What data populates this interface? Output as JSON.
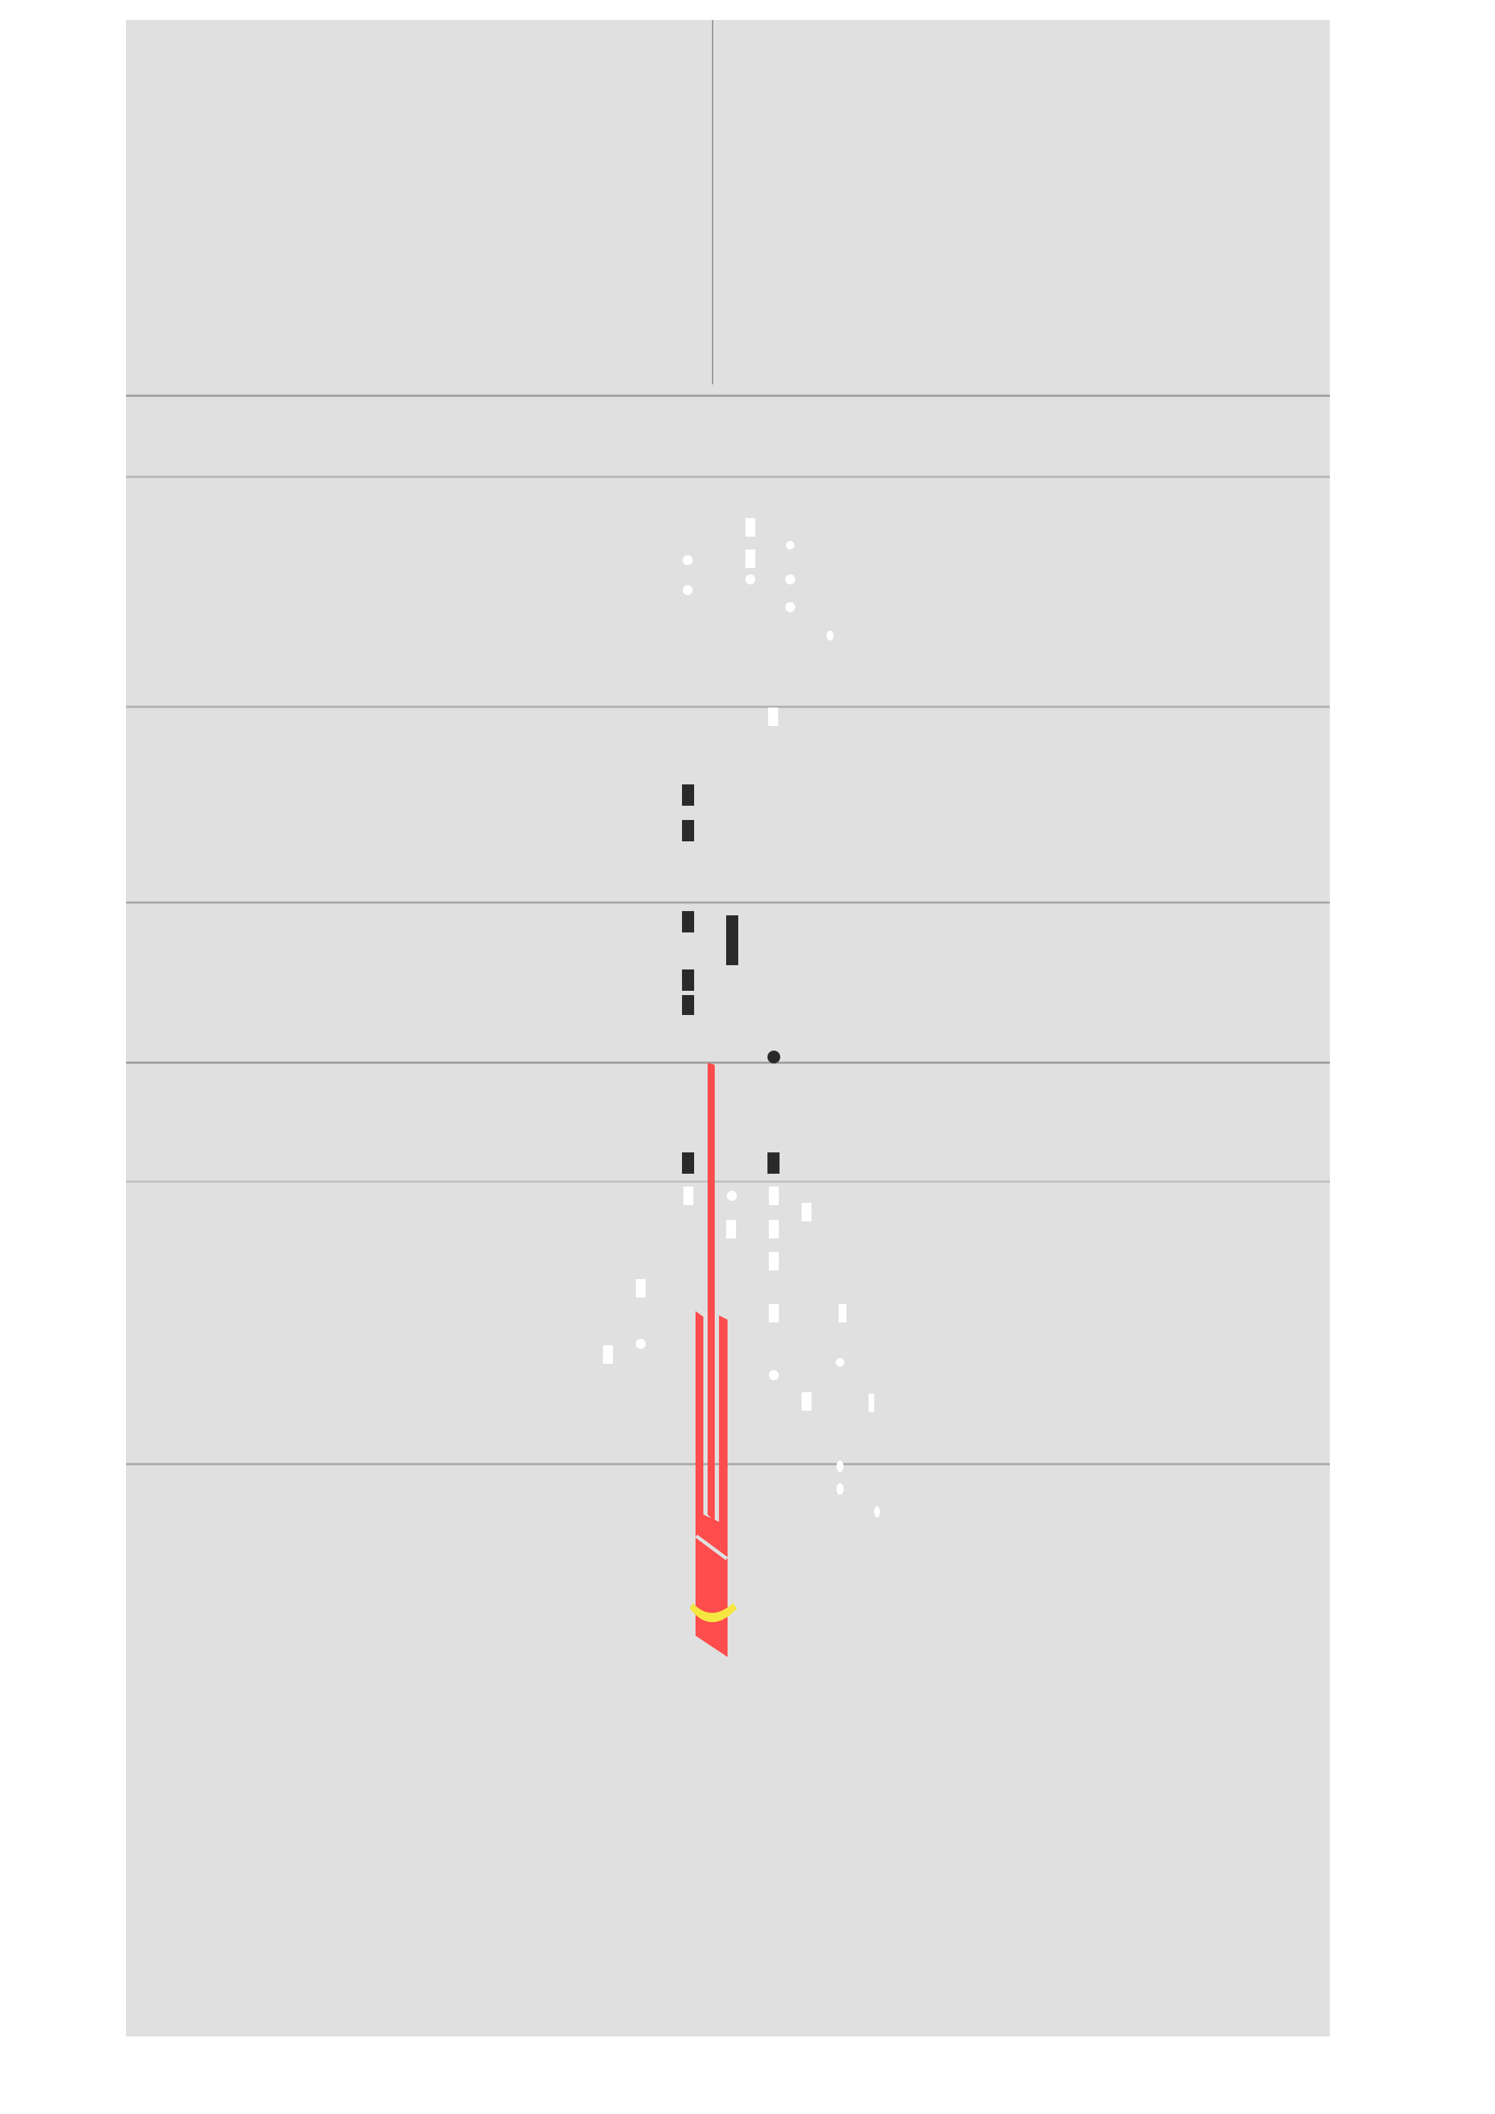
{
  "colors": {
    "background": "#ffffff",
    "playfield": "#e0e0e0",
    "lane_line": "#9e9e9e",
    "lane_line_light": "#b5b5b5",
    "white_note": "#ffffff",
    "black_note": "#2a2a2a",
    "red_note": "#ff4c4c",
    "yellow_accent": "#f5e642",
    "crosshair": "#9a9a9a"
  },
  "icons": {
    "white_rect": "white-note-rect-icon",
    "white_dot": "white-note-dot-icon",
    "black_rect": "black-note-rect-icon",
    "black_dot": "black-note-dot-icon",
    "red_sword": "red-blade-icon"
  },
  "hud": {
    "status_text": ""
  }
}
